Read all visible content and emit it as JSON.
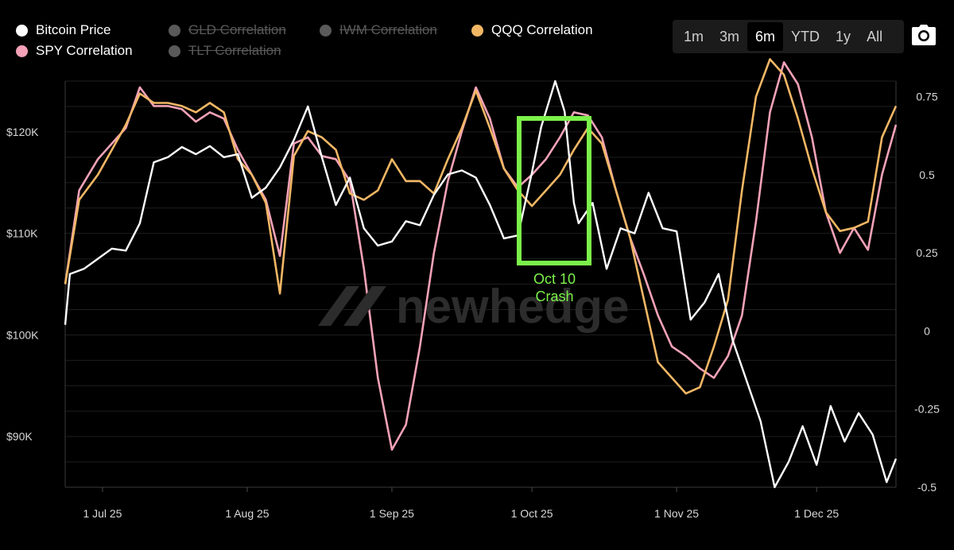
{
  "legend": [
    {
      "label": "Bitcoin Price",
      "color": "#ffffff",
      "enabled": true
    },
    {
      "label": "GLD Correlation",
      "color": "#5a5a5a",
      "enabled": false
    },
    {
      "label": "IWM Correlation",
      "color": "#5a5a5a",
      "enabled": false
    },
    {
      "label": "QQQ Correlation",
      "color": "#f2b765",
      "enabled": true
    },
    {
      "label": "SPY Correlation",
      "color": "#f3a2b7",
      "enabled": true
    },
    {
      "label": "TLT Correlation",
      "color": "#5a5a5a",
      "enabled": false
    }
  ],
  "range_buttons": [
    {
      "label": "1m",
      "active": false
    },
    {
      "label": "3m",
      "active": false
    },
    {
      "label": "6m",
      "active": true
    },
    {
      "label": "YTD",
      "active": false
    },
    {
      "label": "1y",
      "active": false
    },
    {
      "label": "All",
      "active": false
    }
  ],
  "toolbar": {
    "camera_icon": "camera-icon"
  },
  "watermark": "newhedge",
  "annotation": {
    "line1": "Oct 10",
    "line2": "Crash",
    "color": "#7cf24a"
  },
  "chart_data": {
    "type": "line",
    "x_ticks": [
      "1 Jul 25",
      "1 Aug 25",
      "1 Sep 25",
      "1 Oct 25",
      "1 Nov 25",
      "1 Dec 25"
    ],
    "y_left_ticks": [
      "$120K",
      "$110K",
      "$100K",
      "$90K"
    ],
    "y_left_tick_values": [
      120,
      110,
      100,
      90
    ],
    "y_right_ticks": [
      "0.75",
      "0.5",
      "0.25",
      "0",
      "-0.25",
      "-0.5"
    ],
    "y_right_tick_values": [
      0.75,
      0.5,
      0.25,
      0,
      -0.25,
      -0.5
    ],
    "y_left_range": [
      85,
      125
    ],
    "y_right_range": [
      -0.5,
      0.8
    ],
    "x_range": [
      "2025-06-23",
      "2025-12-18"
    ],
    "series": [
      {
        "name": "Bitcoin Price",
        "axis": "left",
        "color": "#ffffff",
        "points": [
          [
            "2025-06-23",
            101
          ],
          [
            "2025-06-24",
            106
          ],
          [
            "2025-06-27",
            106.5
          ],
          [
            "2025-06-30",
            107.5
          ],
          [
            "2025-07-03",
            108.5
          ],
          [
            "2025-07-06",
            108.3
          ],
          [
            "2025-07-09",
            111
          ],
          [
            "2025-07-12",
            117
          ],
          [
            "2025-07-15",
            117.5
          ],
          [
            "2025-07-18",
            118.5
          ],
          [
            "2025-07-21",
            117.8
          ],
          [
            "2025-07-24",
            118.6
          ],
          [
            "2025-07-27",
            117.5
          ],
          [
            "2025-07-30",
            117.8
          ],
          [
            "2025-08-02",
            113.5
          ],
          [
            "2025-08-05",
            114.5
          ],
          [
            "2025-08-08",
            116.5
          ],
          [
            "2025-08-11",
            119.2
          ],
          [
            "2025-08-14",
            122.5
          ],
          [
            "2025-08-17",
            117.5
          ],
          [
            "2025-08-20",
            112.8
          ],
          [
            "2025-08-23",
            115.5
          ],
          [
            "2025-08-26",
            110.5
          ],
          [
            "2025-08-29",
            108.8
          ],
          [
            "2025-09-01",
            109.2
          ],
          [
            "2025-09-04",
            111.2
          ],
          [
            "2025-09-07",
            110.8
          ],
          [
            "2025-09-10",
            113.8
          ],
          [
            "2025-09-13",
            115.8
          ],
          [
            "2025-09-16",
            116.2
          ],
          [
            "2025-09-19",
            115.5
          ],
          [
            "2025-09-22",
            112.8
          ],
          [
            "2025-09-25",
            109.5
          ],
          [
            "2025-09-28",
            109.8
          ],
          [
            "2025-10-01",
            116
          ],
          [
            "2025-10-03",
            120.5
          ],
          [
            "2025-10-06",
            125
          ],
          [
            "2025-10-08",
            122
          ],
          [
            "2025-10-10",
            113
          ],
          [
            "2025-10-11",
            111
          ],
          [
            "2025-10-14",
            113
          ],
          [
            "2025-10-17",
            106.5
          ],
          [
            "2025-10-20",
            110.5
          ],
          [
            "2025-10-23",
            110
          ],
          [
            "2025-10-26",
            114
          ],
          [
            "2025-10-29",
            110.5
          ],
          [
            "2025-11-01",
            110.2
          ],
          [
            "2025-11-04",
            101.5
          ],
          [
            "2025-11-07",
            103.2
          ],
          [
            "2025-11-10",
            106
          ],
          [
            "2025-11-13",
            99.5
          ],
          [
            "2025-11-16",
            95.5
          ],
          [
            "2025-11-19",
            91.5
          ],
          [
            "2025-11-22",
            85
          ],
          [
            "2025-11-25",
            87.5
          ],
          [
            "2025-11-28",
            91
          ],
          [
            "2025-12-01",
            87.2
          ],
          [
            "2025-12-04",
            93
          ],
          [
            "2025-12-07",
            89.5
          ],
          [
            "2025-12-10",
            92.3
          ],
          [
            "2025-12-13",
            90.2
          ],
          [
            "2025-12-16",
            85.5
          ],
          [
            "2025-12-18",
            87.8
          ]
        ]
      },
      {
        "name": "SPY Correlation",
        "axis": "right",
        "color": "#f3a2b7",
        "points": [
          [
            "2025-06-23",
            0.15
          ],
          [
            "2025-06-26",
            0.45
          ],
          [
            "2025-06-30",
            0.55
          ],
          [
            "2025-07-03",
            0.6
          ],
          [
            "2025-07-06",
            0.65
          ],
          [
            "2025-07-09",
            0.78
          ],
          [
            "2025-07-12",
            0.72
          ],
          [
            "2025-07-15",
            0.72
          ],
          [
            "2025-07-18",
            0.71
          ],
          [
            "2025-07-21",
            0.67
          ],
          [
            "2025-07-24",
            0.7
          ],
          [
            "2025-07-27",
            0.68
          ],
          [
            "2025-07-30",
            0.58
          ],
          [
            "2025-08-02",
            0.5
          ],
          [
            "2025-08-05",
            0.42
          ],
          [
            "2025-08-08",
            0.24
          ],
          [
            "2025-08-11",
            0.6
          ],
          [
            "2025-08-14",
            0.62
          ],
          [
            "2025-08-17",
            0.56
          ],
          [
            "2025-08-20",
            0.55
          ],
          [
            "2025-08-23",
            0.48
          ],
          [
            "2025-08-26",
            0.2
          ],
          [
            "2025-08-29",
            -0.15
          ],
          [
            "2025-09-01",
            -0.38
          ],
          [
            "2025-09-04",
            -0.3
          ],
          [
            "2025-09-07",
            -0.05
          ],
          [
            "2025-09-10",
            0.25
          ],
          [
            "2025-09-13",
            0.48
          ],
          [
            "2025-09-16",
            0.64
          ],
          [
            "2025-09-19",
            0.78
          ],
          [
            "2025-09-22",
            0.68
          ],
          [
            "2025-09-25",
            0.52
          ],
          [
            "2025-09-28",
            0.46
          ],
          [
            "2025-10-01",
            0.5
          ],
          [
            "2025-10-04",
            0.55
          ],
          [
            "2025-10-07",
            0.62
          ],
          [
            "2025-10-10",
            0.7
          ],
          [
            "2025-10-13",
            0.69
          ],
          [
            "2025-10-16",
            0.62
          ],
          [
            "2025-10-19",
            0.45
          ],
          [
            "2025-10-22",
            0.3
          ],
          [
            "2025-10-25",
            0.18
          ],
          [
            "2025-10-28",
            0.05
          ],
          [
            "2025-10-31",
            -0.05
          ],
          [
            "2025-11-03",
            -0.08
          ],
          [
            "2025-11-06",
            -0.12
          ],
          [
            "2025-11-09",
            -0.15
          ],
          [
            "2025-11-12",
            -0.08
          ],
          [
            "2025-11-15",
            0.05
          ],
          [
            "2025-11-18",
            0.35
          ],
          [
            "2025-11-21",
            0.7
          ],
          [
            "2025-11-24",
            0.86
          ],
          [
            "2025-11-27",
            0.79
          ],
          [
            "2025-11-30",
            0.62
          ],
          [
            "2025-12-03",
            0.38
          ],
          [
            "2025-12-06",
            0.25
          ],
          [
            "2025-12-09",
            0.33
          ],
          [
            "2025-12-12",
            0.26
          ],
          [
            "2025-12-15",
            0.5
          ],
          [
            "2025-12-18",
            0.66
          ]
        ]
      },
      {
        "name": "QQQ Correlation",
        "axis": "right",
        "color": "#f2b765",
        "points": [
          [
            "2025-06-23",
            0.15
          ],
          [
            "2025-06-26",
            0.42
          ],
          [
            "2025-06-30",
            0.5
          ],
          [
            "2025-07-03",
            0.58
          ],
          [
            "2025-07-06",
            0.66
          ],
          [
            "2025-07-09",
            0.76
          ],
          [
            "2025-07-12",
            0.73
          ],
          [
            "2025-07-15",
            0.73
          ],
          [
            "2025-07-18",
            0.72
          ],
          [
            "2025-07-21",
            0.7
          ],
          [
            "2025-07-24",
            0.73
          ],
          [
            "2025-07-27",
            0.7
          ],
          [
            "2025-07-30",
            0.55
          ],
          [
            "2025-08-02",
            0.5
          ],
          [
            "2025-08-05",
            0.41
          ],
          [
            "2025-08-08",
            0.12
          ],
          [
            "2025-08-11",
            0.56
          ],
          [
            "2025-08-14",
            0.64
          ],
          [
            "2025-08-17",
            0.62
          ],
          [
            "2025-08-20",
            0.58
          ],
          [
            "2025-08-23",
            0.44
          ],
          [
            "2025-08-26",
            0.42
          ],
          [
            "2025-08-29",
            0.45
          ],
          [
            "2025-09-01",
            0.55
          ],
          [
            "2025-09-04",
            0.48
          ],
          [
            "2025-09-07",
            0.48
          ],
          [
            "2025-09-10",
            0.44
          ],
          [
            "2025-09-13",
            0.55
          ],
          [
            "2025-09-16",
            0.65
          ],
          [
            "2025-09-19",
            0.77
          ],
          [
            "2025-09-22",
            0.65
          ],
          [
            "2025-09-25",
            0.52
          ],
          [
            "2025-09-28",
            0.45
          ],
          [
            "2025-10-01",
            0.4
          ],
          [
            "2025-10-04",
            0.45
          ],
          [
            "2025-10-07",
            0.5
          ],
          [
            "2025-10-10",
            0.58
          ],
          [
            "2025-10-13",
            0.65
          ],
          [
            "2025-10-16",
            0.6
          ],
          [
            "2025-10-19",
            0.45
          ],
          [
            "2025-10-22",
            0.3
          ],
          [
            "2025-10-25",
            0.1
          ],
          [
            "2025-10-28",
            -0.1
          ],
          [
            "2025-10-31",
            -0.15
          ],
          [
            "2025-11-03",
            -0.2
          ],
          [
            "2025-11-06",
            -0.18
          ],
          [
            "2025-11-09",
            -0.05
          ],
          [
            "2025-11-12",
            0.1
          ],
          [
            "2025-11-15",
            0.45
          ],
          [
            "2025-11-18",
            0.75
          ],
          [
            "2025-11-21",
            0.87
          ],
          [
            "2025-11-24",
            0.82
          ],
          [
            "2025-11-27",
            0.68
          ],
          [
            "2025-11-30",
            0.52
          ],
          [
            "2025-12-03",
            0.38
          ],
          [
            "2025-12-06",
            0.32
          ],
          [
            "2025-12-09",
            0.33
          ],
          [
            "2025-12-12",
            0.35
          ],
          [
            "2025-12-15",
            0.62
          ],
          [
            "2025-12-18",
            0.72
          ]
        ]
      }
    ],
    "grid": true,
    "legend_position": "top-left"
  }
}
